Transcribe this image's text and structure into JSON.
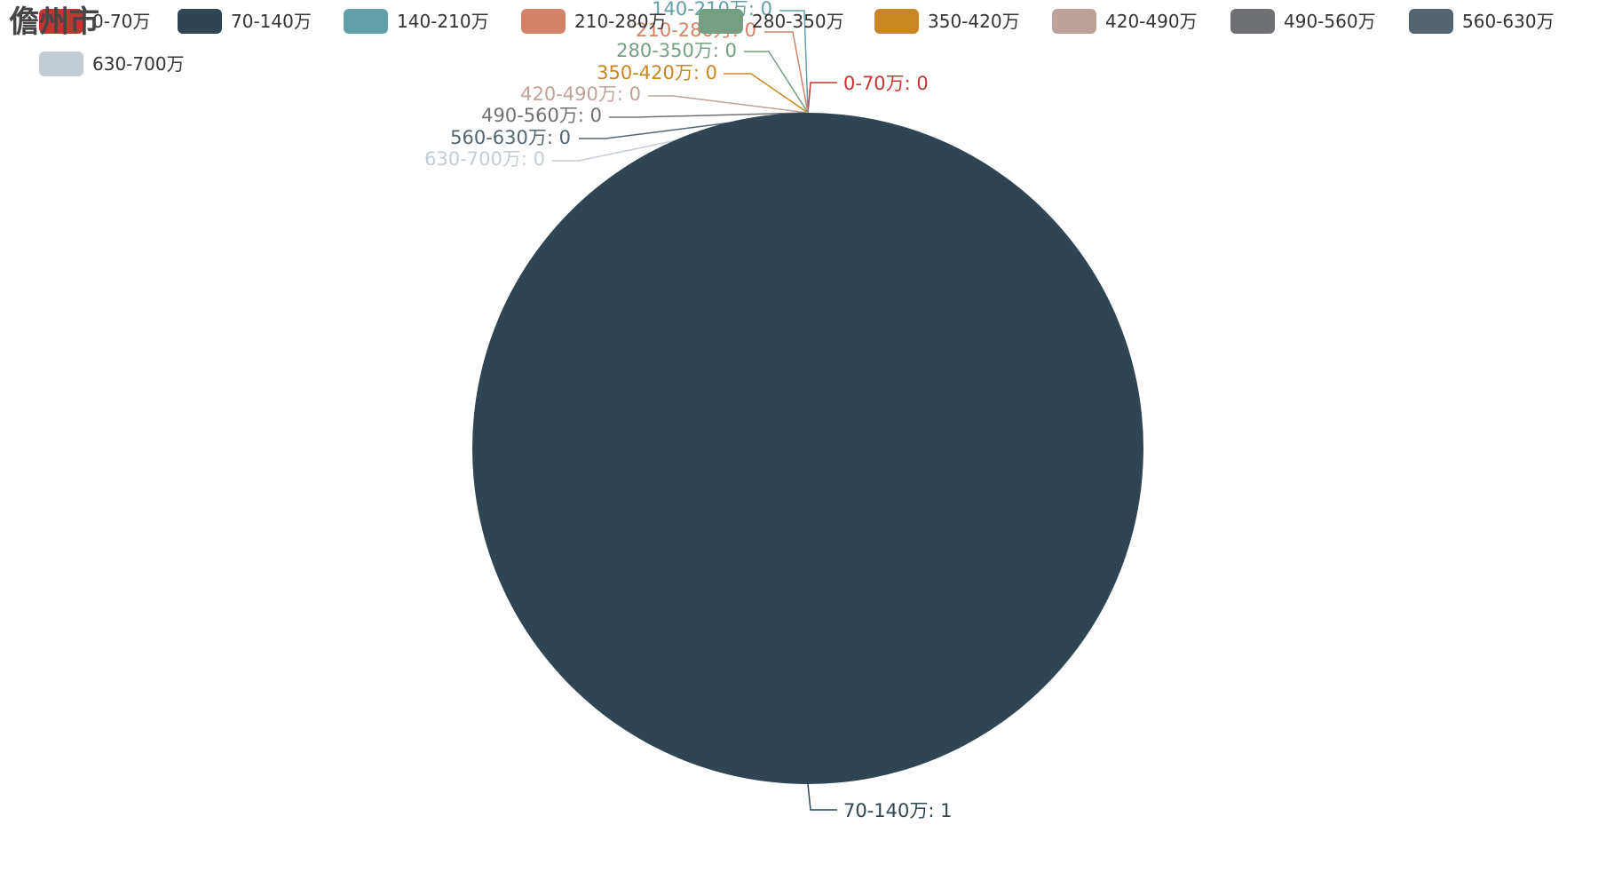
{
  "title": "儋州市",
  "chart_data": {
    "type": "pie",
    "title": "儋州市",
    "legend_position": "top",
    "categories": [
      "0-70万",
      "70-140万",
      "140-210万",
      "210-280万",
      "280-350万",
      "350-420万",
      "420-490万",
      "490-560万",
      "560-630万",
      "630-700万"
    ],
    "values": [
      0,
      1,
      0,
      0,
      0,
      0,
      0,
      0,
      0,
      0
    ],
    "colors": [
      "#c23531",
      "#2f4554",
      "#61a0a8",
      "#d48265",
      "#749f83",
      "#ca8622",
      "#bda29a",
      "#6e7074",
      "#546570",
      "#c4ccd3"
    ]
  }
}
